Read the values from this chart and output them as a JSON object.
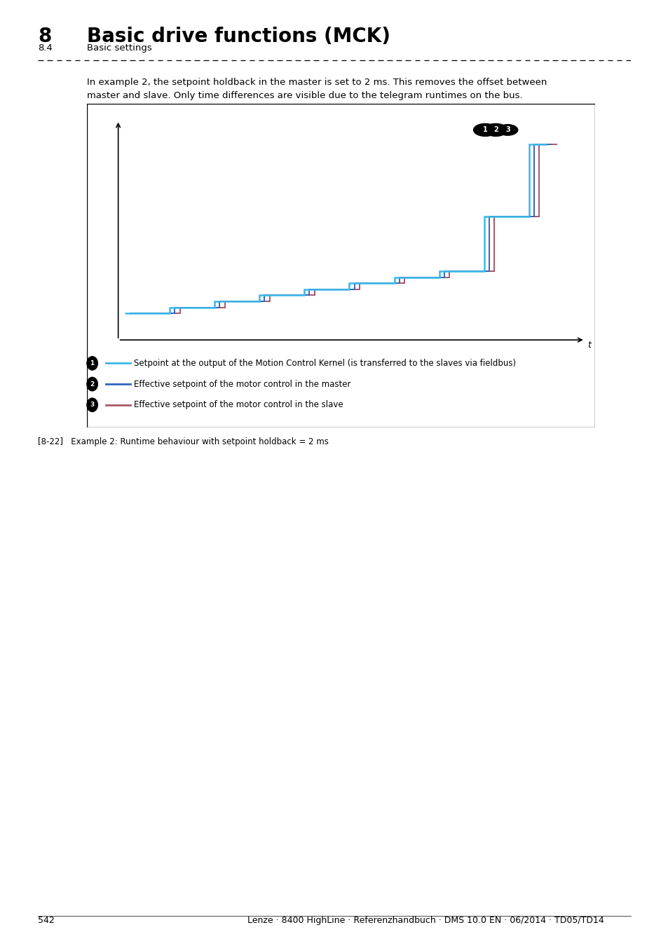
{
  "title_number": "8",
  "title_text": "Basic drive functions (MCK)",
  "subtitle_number": "8.4",
  "subtitle_text": "Basic settings",
  "description_line1": "In example 2, the setpoint holdback in the master is set to 2 ms. This removes the offset between",
  "description_line2": "master and slave. Only time differences are visible due to the telegram runtimes on the bus.",
  "caption": "[8-22]   Example 2: Runtime behaviour with setpoint holdback = 2 ms",
  "color1": "#3BB8E8",
  "color2": "#3366BB",
  "color3": "#AA5566",
  "legend1": "Setpoint at the output of the Motion Control Kernel (is transferred to the slaves via fieldbus)",
  "legend2": "Effective setpoint of the motor control in the master",
  "legend3": "Effective setpoint of the motor control in the slave",
  "bg_color": "#FFFFFF",
  "page_num": "542",
  "footer_right": "Lenze · 8400 HighLine · Referenzhandbuch · DMS 10.0 EN · 06/2014 · TD05/TD14"
}
